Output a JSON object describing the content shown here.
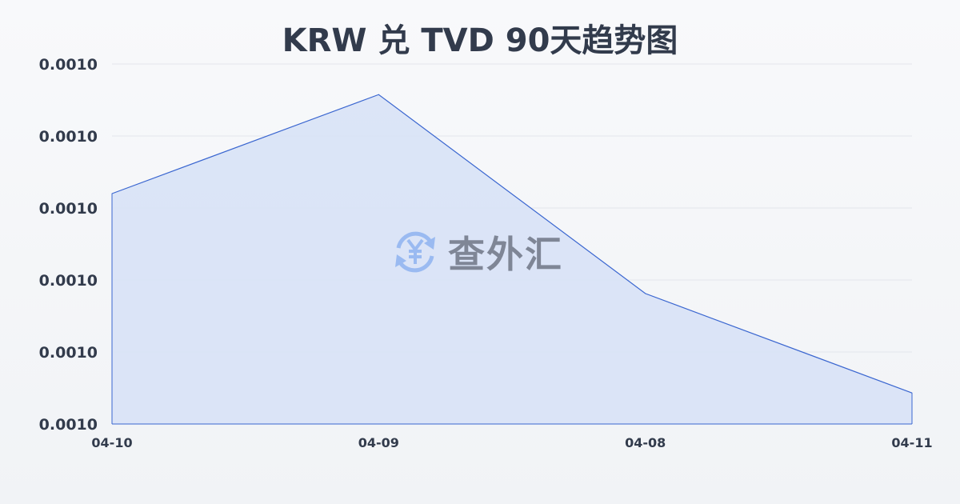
{
  "chart_data": {
    "type": "area",
    "title": "KRW 兑 TVD 90天趋势图",
    "xlabel": "",
    "ylabel": "",
    "categories": [
      "04-10",
      "04-09",
      "04-08",
      "04-11"
    ],
    "series": [
      {
        "values": [
          0.0010112,
          0.0010332,
          0.000989,
          0.0009669
        ]
      }
    ],
    "ylim": [
      0.00096,
      0.00104
    ],
    "yticks": [
      0.00096,
      0.000976,
      0.000992,
      0.001008,
      0.001024,
      0.00104
    ],
    "ytick_labels": [
      "0.0010",
      "0.0010",
      "0.0010",
      "0.0010",
      "0.0010",
      "0.0010"
    ],
    "grid": true,
    "legend": "none",
    "colors": {
      "line": "#3a66d0",
      "fill": "#d8e2f6",
      "grid": "#e3e6ec",
      "text": "#323b4c"
    }
  },
  "watermark": {
    "text": "查外汇",
    "icon": "yen-exchange-icon"
  }
}
